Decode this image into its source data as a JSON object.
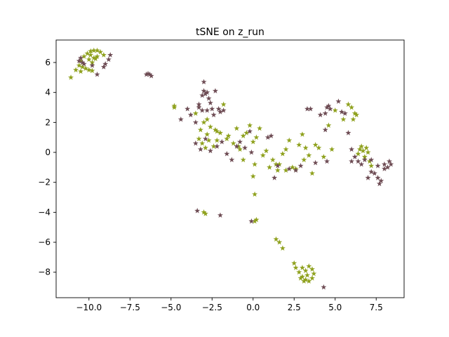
{
  "chart_data": {
    "type": "scatter",
    "title": "tSNE on z_run",
    "xlabel": "",
    "ylabel": "",
    "xlim": [
      -12.0,
      9.2
    ],
    "ylim": [
      -9.7,
      7.5
    ],
    "x_ticks": [
      -10.0,
      -7.5,
      -5.0,
      -2.5,
      0.0,
      2.5,
      5.0,
      7.5
    ],
    "x_tick_labels": [
      "−10.0",
      "−7.5",
      "−5.0",
      "−2.5",
      "0.0",
      "2.5",
      "5.0",
      "7.5"
    ],
    "y_ticks": [
      -8,
      -6,
      -4,
      -2,
      0,
      2,
      4,
      6
    ],
    "y_tick_labels": [
      "−8",
      "−6",
      "−4",
      "−2",
      "0",
      "2",
      "4",
      "6"
    ],
    "grid": false,
    "legend": "none",
    "marker": "star",
    "series": [
      {
        "color": "#8fa11e",
        "points": [
          [
            -11.1,
            5.0
          ],
          [
            -10.8,
            5.5
          ],
          [
            -10.6,
            5.8
          ],
          [
            -10.5,
            6.1
          ],
          [
            -10.3,
            6.4
          ],
          [
            -10.1,
            6.6
          ],
          [
            -9.9,
            6.75
          ],
          [
            -9.7,
            6.8
          ],
          [
            -9.5,
            6.8
          ],
          [
            -9.3,
            6.7
          ],
          [
            -9.1,
            6.5
          ],
          [
            -10.0,
            6.2
          ],
          [
            -9.8,
            6.0
          ],
          [
            -9.7,
            6.3
          ],
          [
            -9.6,
            6.25
          ],
          [
            -10.2,
            5.6
          ],
          [
            -10.0,
            5.5
          ],
          [
            -9.8,
            5.45
          ],
          [
            -10.5,
            5.4
          ],
          [
            -10.4,
            5.7
          ],
          [
            -9.5,
            6.4
          ],
          [
            -9.9,
            6.5
          ],
          [
            -4.8,
            3.0
          ],
          [
            -4.8,
            3.1
          ],
          [
            -3.5,
            2.6
          ],
          [
            -3.2,
            1.5
          ],
          [
            -3.0,
            2.0
          ],
          [
            -2.8,
            2.2
          ],
          [
            -2.6,
            1.7
          ],
          [
            -2.4,
            0.4
          ],
          [
            -2.2,
            0.8
          ],
          [
            -2.0,
            1.3
          ],
          [
            -1.8,
            3.2
          ],
          [
            -1.5,
            1.1
          ],
          [
            -1.2,
            0.6
          ],
          [
            -1.0,
            1.6
          ],
          [
            -0.8,
            0.2
          ],
          [
            -0.6,
            1.1
          ],
          [
            -0.4,
            1.3
          ],
          [
            -0.2,
            1.8
          ],
          [
            0.0,
            0.7
          ],
          [
            0.2,
            1.0
          ],
          [
            0.4,
            1.6
          ],
          [
            0.6,
            -0.2
          ],
          [
            0.8,
            0.1
          ],
          [
            1.2,
            -0.5
          ],
          [
            1.5,
            -1.2
          ],
          [
            1.6,
            -0.8
          ],
          [
            1.8,
            -0.1
          ],
          [
            2.0,
            0.2
          ],
          [
            2.2,
            0.8
          ],
          [
            2.4,
            -1.0
          ],
          [
            2.6,
            -1.1
          ],
          [
            2.8,
            0.5
          ],
          [
            3.0,
            1.2
          ],
          [
            3.2,
            0.3
          ],
          [
            3.4,
            -0.2
          ],
          [
            3.6,
            -1.4
          ],
          [
            3.8,
            0.5
          ],
          [
            4.0,
            0.3
          ],
          [
            4.3,
            -0.3
          ],
          [
            4.6,
            1.8
          ],
          [
            4.8,
            0.2
          ],
          [
            5.0,
            2.8
          ],
          [
            5.5,
            2.2
          ],
          [
            5.8,
            3.2
          ],
          [
            6.0,
            3.0
          ],
          [
            6.1,
            2.2
          ],
          [
            6.2,
            2.6
          ],
          [
            6.3,
            2.5
          ],
          [
            6.4,
            -0.1
          ],
          [
            6.5,
            0.2
          ],
          [
            6.6,
            0.4
          ],
          [
            6.7,
            0.1
          ],
          [
            6.8,
            -0.3
          ],
          [
            6.9,
            0.3
          ],
          [
            7.0,
            0.0
          ],
          [
            7.1,
            -0.6
          ],
          [
            7.2,
            -0.9
          ],
          [
            -3.3,
            0.9
          ],
          [
            -3.1,
            0.6
          ],
          [
            -2.9,
            0.3
          ],
          [
            -2.7,
            0.8
          ],
          [
            -1.6,
            0.9
          ],
          [
            -0.9,
            0.4
          ],
          [
            0.1,
            -0.8
          ],
          [
            0.0,
            -1.6
          ],
          [
            0.1,
            -2.8
          ],
          [
            -0.6,
            -0.5
          ],
          [
            1.0,
            -1.0
          ],
          [
            1.4,
            -0.8
          ],
          [
            2.0,
            -1.2
          ],
          [
            3.1,
            -0.5
          ],
          [
            -2.8,
            1.2
          ],
          [
            -2.3,
            1.5
          ],
          [
            -2.2,
            1.4
          ],
          [
            -3.0,
            -4.0
          ],
          [
            -2.9,
            -4.1
          ],
          [
            0.1,
            -4.6
          ],
          [
            0.2,
            -4.5
          ],
          [
            1.4,
            -5.8
          ],
          [
            1.6,
            -6.0
          ],
          [
            1.8,
            -6.4
          ],
          [
            2.5,
            -7.4
          ],
          [
            2.6,
            -7.7
          ],
          [
            2.8,
            -8.0
          ],
          [
            3.0,
            -8.3
          ],
          [
            3.2,
            -8.5
          ],
          [
            3.4,
            -8.6
          ],
          [
            3.6,
            -8.4
          ],
          [
            3.7,
            -8.1
          ],
          [
            3.6,
            -7.8
          ],
          [
            3.4,
            -7.6
          ],
          [
            3.2,
            -7.9
          ],
          [
            3.0,
            -7.7
          ],
          [
            3.3,
            -8.2
          ],
          [
            3.1,
            -8.6
          ],
          [
            2.9,
            -8.4
          ]
        ]
      },
      {
        "color": "#6e4c54",
        "points": [
          [
            -10.5,
            6.3
          ],
          [
            -10.4,
            6.0
          ],
          [
            -10.3,
            5.9
          ],
          [
            -9.8,
            5.8
          ],
          [
            -9.5,
            5.2
          ],
          [
            -9.1,
            5.7
          ],
          [
            -9.0,
            5.9
          ],
          [
            -8.8,
            6.2
          ],
          [
            -8.7,
            6.5
          ],
          [
            -10.6,
            6.1
          ],
          [
            -6.5,
            5.2
          ],
          [
            -6.4,
            5.25
          ],
          [
            -6.3,
            5.2
          ],
          [
            -6.2,
            5.1
          ],
          [
            -4.4,
            2.2
          ],
          [
            -4.0,
            2.9
          ],
          [
            -3.8,
            2.5
          ],
          [
            -3.5,
            2.0
          ],
          [
            -3.3,
            3.2
          ],
          [
            -3.1,
            3.8
          ],
          [
            -3.0,
            4.1
          ],
          [
            -2.9,
            3.9
          ],
          [
            -2.8,
            4.0
          ],
          [
            -2.7,
            3.6
          ],
          [
            -2.6,
            3.3
          ],
          [
            -2.5,
            2.9
          ],
          [
            -2.4,
            2.5
          ],
          [
            -2.3,
            4.1
          ],
          [
            -2.1,
            2.9
          ],
          [
            -2.0,
            2.7
          ],
          [
            -1.8,
            2.8
          ],
          [
            -3.0,
            4.7
          ],
          [
            -3.3,
            3.0
          ],
          [
            -3.1,
            2.8
          ],
          [
            -2.8,
            2.8
          ],
          [
            -3.5,
            0.6
          ],
          [
            -3.2,
            0.2
          ],
          [
            -2.9,
            0.9
          ],
          [
            -2.6,
            0.1
          ],
          [
            -2.2,
            0.4
          ],
          [
            -1.9,
            0.7
          ],
          [
            -1.6,
            -0.1
          ],
          [
            -1.3,
            -0.5
          ],
          [
            -1.0,
            0.4
          ],
          [
            -0.8,
            0.7
          ],
          [
            -0.5,
            0.3
          ],
          [
            -0.2,
            1.4
          ],
          [
            -0.1,
            0.0
          ],
          [
            0.9,
            1.0
          ],
          [
            1.1,
            1.1
          ],
          [
            1.5,
            -0.9
          ],
          [
            2.2,
            -1.1
          ],
          [
            2.6,
            -1.2
          ],
          [
            2.9,
            -0.9
          ],
          [
            3.3,
            2.9
          ],
          [
            3.5,
            2.9
          ],
          [
            3.8,
            -0.7
          ],
          [
            4.1,
            2.5
          ],
          [
            4.4,
            2.6
          ],
          [
            4.5,
            3.0
          ],
          [
            4.6,
            3.1
          ],
          [
            4.7,
            2.9
          ],
          [
            4.4,
            1.5
          ],
          [
            5.2,
            3.4
          ],
          [
            5.4,
            2.7
          ],
          [
            5.6,
            2.6
          ],
          [
            5.8,
            1.3
          ],
          [
            6.0,
            0.2
          ],
          [
            6.0,
            -0.6
          ],
          [
            6.2,
            -0.3
          ],
          [
            6.4,
            -0.6
          ],
          [
            6.6,
            -0.8
          ],
          [
            6.8,
            -0.5
          ],
          [
            7.0,
            -1.7
          ],
          [
            7.2,
            -1.3
          ],
          [
            7.4,
            -1.4
          ],
          [
            7.6,
            -1.7
          ],
          [
            7.7,
            -2.1
          ],
          [
            7.8,
            -1.9
          ],
          [
            8.0,
            -0.8
          ],
          [
            8.2,
            -1.0
          ],
          [
            8.3,
            -0.6
          ],
          [
            8.4,
            -0.8
          ],
          [
            8.0,
            -1.1
          ],
          [
            7.6,
            -0.9
          ],
          [
            7.2,
            -0.5
          ],
          [
            -2.0,
            -4.2
          ],
          [
            -3.4,
            -3.9
          ],
          [
            -0.1,
            -4.6
          ],
          [
            4.3,
            -9.0
          ],
          [
            4.5,
            -0.6
          ],
          [
            1.3,
            -1.7
          ]
        ]
      }
    ]
  }
}
